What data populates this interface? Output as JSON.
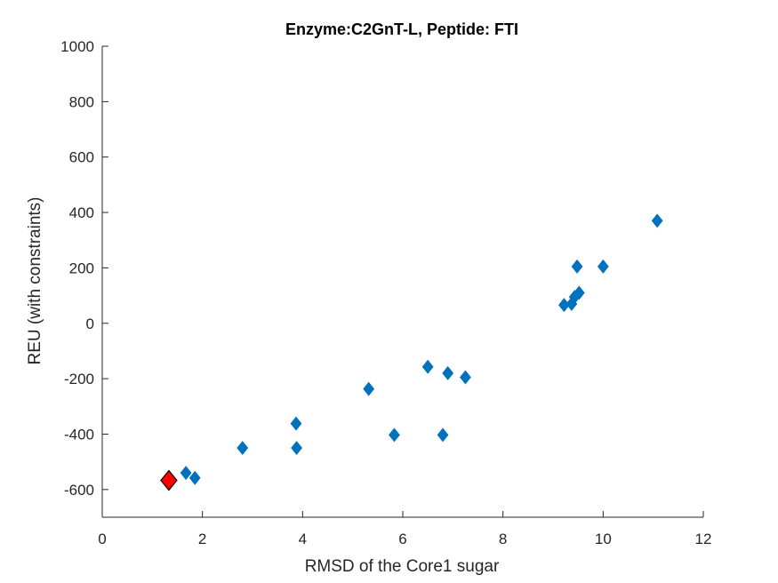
{
  "chart_data": {
    "type": "scatter",
    "title": "Enzyme:C2GnT-L, Peptide: FTI",
    "xlabel": "RMSD of the Core1 sugar",
    "ylabel": "REU (with constraints)",
    "xlim": [
      0,
      12
    ],
    "ylim": [
      -700,
      1000
    ],
    "x_ticks": [
      0,
      2,
      4,
      6,
      8,
      10,
      12
    ],
    "y_ticks": [
      -600,
      -400,
      -200,
      0,
      200,
      400,
      600,
      800,
      1000
    ],
    "x_tick_labels": [
      "0",
      "2",
      "4",
      "6",
      "8",
      "10",
      "12"
    ],
    "y_tick_labels": [
      "-600",
      "-400",
      "-200",
      "0",
      "200",
      "400",
      "600",
      "800",
      "1000"
    ],
    "grid": false,
    "legend": "none",
    "marker": "diamond",
    "series": [
      {
        "color": "#0072BD",
        "points": [
          {
            "x": 1.67,
            "y": -540
          },
          {
            "x": 1.85,
            "y": -558
          },
          {
            "x": 2.8,
            "y": -450
          },
          {
            "x": 3.87,
            "y": -362
          },
          {
            "x": 3.88,
            "y": -450
          },
          {
            "x": 5.32,
            "y": -237
          },
          {
            "x": 5.83,
            "y": -403
          },
          {
            "x": 6.5,
            "y": -157
          },
          {
            "x": 6.8,
            "y": -403
          },
          {
            "x": 6.9,
            "y": -180
          },
          {
            "x": 7.25,
            "y": -195
          },
          {
            "x": 9.22,
            "y": 66
          },
          {
            "x": 9.37,
            "y": 70
          },
          {
            "x": 9.43,
            "y": 95
          },
          {
            "x": 9.48,
            "y": 205
          },
          {
            "x": 9.52,
            "y": 110
          },
          {
            "x": 10.0,
            "y": 205
          },
          {
            "x": 11.08,
            "y": 370
          }
        ]
      },
      {
        "color": "#FF0000",
        "highlight": true,
        "points": [
          {
            "x": 1.33,
            "y": -567
          }
        ]
      }
    ]
  }
}
